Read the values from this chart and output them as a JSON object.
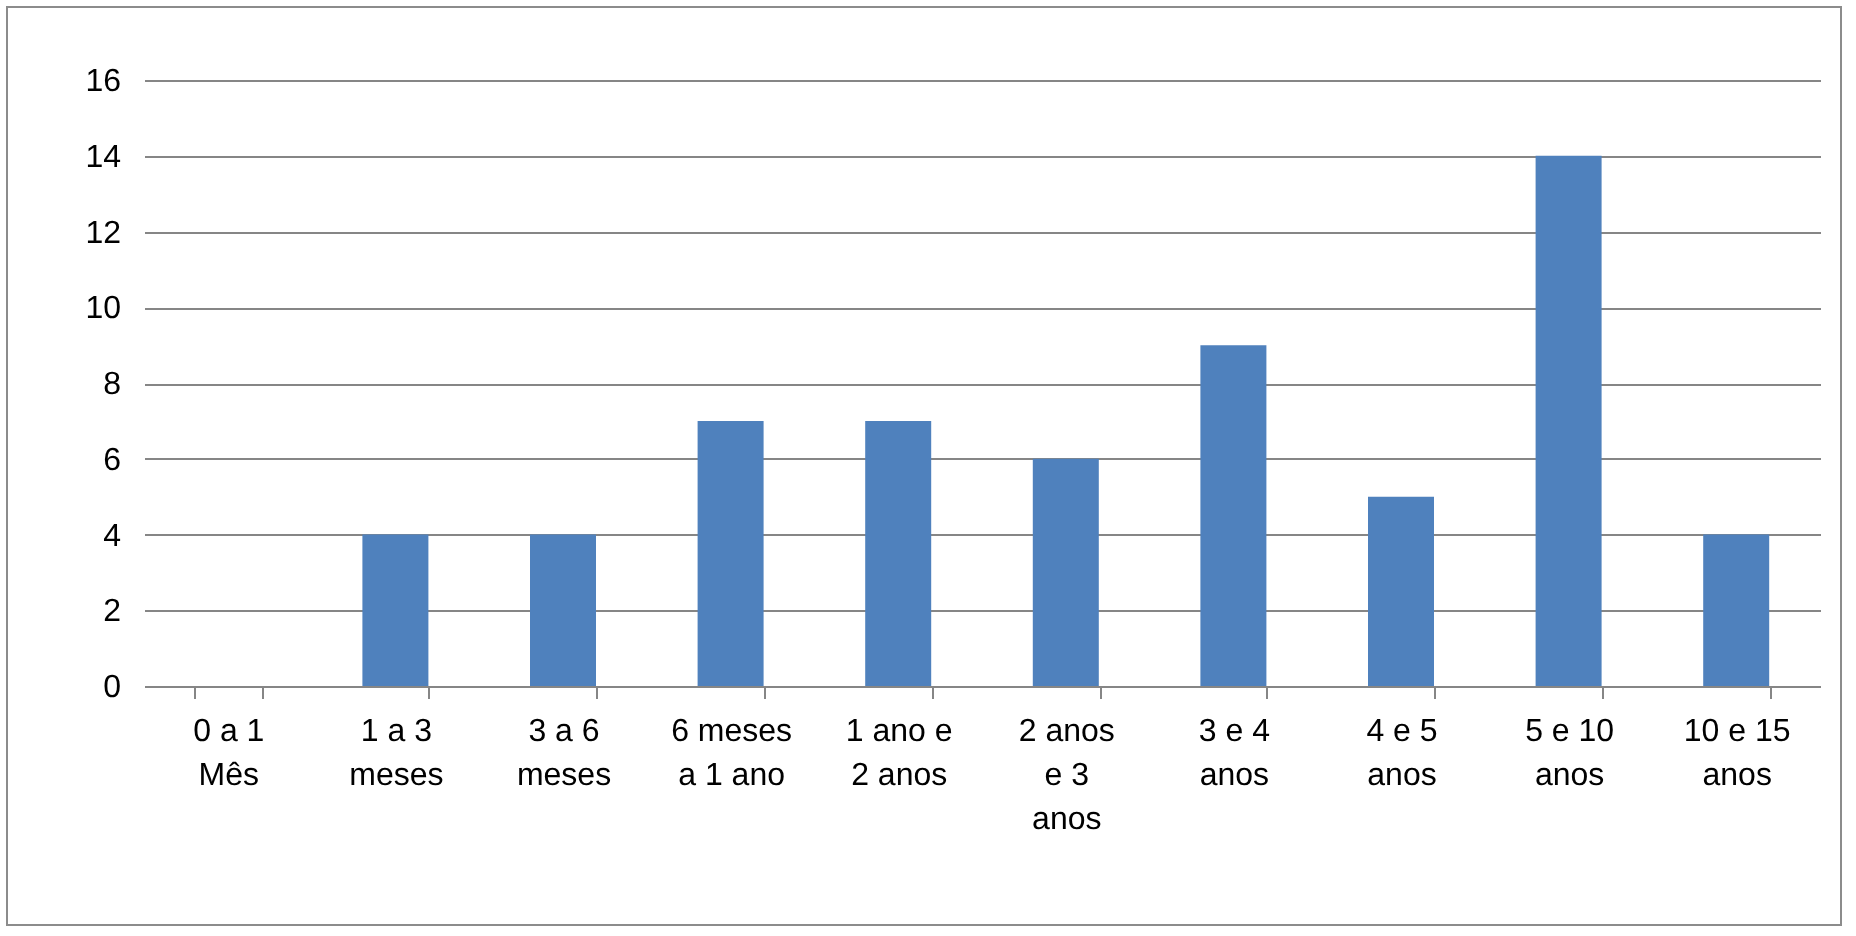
{
  "chart_data": {
    "type": "bar",
    "categories": [
      "0 a 1 Mês",
      "1 a 3 meses",
      "3 a 6 meses",
      "6 meses a 1 ano",
      "1 ano e 2 anos",
      "2 anos e 3 anos",
      "3 e 4 anos",
      "4 e 5 anos",
      "5 e 10 anos",
      "10 e 15 anos"
    ],
    "values": [
      0,
      4,
      4,
      7,
      7,
      6,
      9,
      5,
      14,
      4
    ],
    "color": "#4f81bd",
    "ylim": [
      0,
      16
    ],
    "yticks": [
      0,
      2,
      4,
      6,
      8,
      10,
      12,
      14,
      16
    ],
    "grid": "y"
  }
}
